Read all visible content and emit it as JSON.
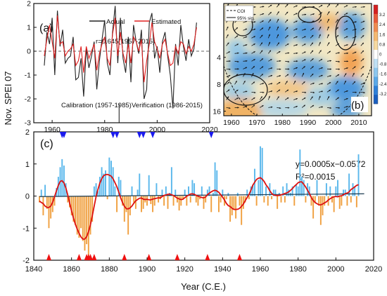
{
  "figure": {
    "shared_ylabel": "Nov. SPEI 07",
    "panel_c_xlabel": "Year (C.E.)"
  },
  "chart_data": [
    {
      "panel": "(a)",
      "type": "line",
      "xlim": [
        1953,
        2020
      ],
      "ylim": [
        -3,
        2
      ],
      "xticks": [
        1960,
        1980,
        2000,
        2020
      ],
      "yticks": [
        -3,
        -2,
        -1,
        0,
        1,
        2
      ],
      "legend": [
        "Actual",
        "Estimated"
      ],
      "legend_position": "top-right",
      "annotation": "r=0.645(1957-2015)",
      "period_labels": [
        "Calibration (1957-1985)",
        "Verification (1986-2015)"
      ],
      "divider_year": 1985.5,
      "x": [
        1957,
        1958,
        1959,
        1960,
        1961,
        1962,
        1963,
        1964,
        1965,
        1966,
        1967,
        1968,
        1969,
        1970,
        1971,
        1972,
        1973,
        1974,
        1975,
        1976,
        1977,
        1978,
        1979,
        1980,
        1981,
        1982,
        1983,
        1984,
        1985,
        1986,
        1987,
        1988,
        1989,
        1990,
        1991,
        1992,
        1993,
        1994,
        1995,
        1996,
        1997,
        1998,
        1999,
        2000,
        2001,
        2002,
        2003,
        2004,
        2005,
        2006,
        2007,
        2008,
        2009,
        2010,
        2011,
        2012,
        2013,
        2014,
        2015
      ],
      "series": [
        {
          "name": "Actual",
          "color": "#222222",
          "values": [
            -0.6,
            0.8,
            0.3,
            1.4,
            -1.0,
            1.7,
            0.2,
            0.9,
            -0.5,
            -0.3,
            -0.2,
            0.6,
            -1.2,
            -1.1,
            -0.3,
            -1.9,
            0.1,
            -0.7,
            -0.2,
            0.4,
            -1.6,
            -0.4,
            0.5,
            1.3,
            -0.5,
            -1.0,
            0.8,
            1.9,
            -0.5,
            1.4,
            -0.3,
            -0.9,
            0.6,
            -1.3,
            1.1,
            0.4,
            -0.1,
            0.9,
            -2.0,
            -1.6,
            1.2,
            1.6,
            -0.3,
            0.2,
            -0.9,
            0.4,
            0.8,
            -0.2,
            -1.0,
            -2.4,
            0.3,
            -0.6,
            1.1,
            0.2,
            -0.4,
            0.5,
            -0.2,
            0.1,
            1.2
          ]
        },
        {
          "name": "Estimated",
          "color": "#e02020",
          "values": [
            -0.2,
            0.5,
            1.1,
            0.4,
            -0.3,
            1.5,
            0.3,
            0.4,
            -0.2,
            0.0,
            0.1,
            0.3,
            -0.6,
            -0.4,
            0.2,
            -0.9,
            0.2,
            -0.3,
            0.0,
            0.3,
            -0.8,
            -0.1,
            0.3,
            0.6,
            -0.3,
            -0.6,
            0.7,
            1.4,
            -0.2,
            0.8,
            -0.1,
            -0.5,
            0.3,
            -0.5,
            0.6,
            0.4,
            0.0,
            0.5,
            -1.3,
            -0.4,
            0.3,
            1.2,
            0.4,
            0.1,
            -0.3,
            0.3,
            0.5,
            -0.1,
            -0.6,
            -0.5,
            0.2,
            -0.1,
            0.4,
            0.3,
            -0.1,
            0.2,
            0.0,
            0.3,
            1.0
          ]
        }
      ]
    },
    {
      "panel": "(b)",
      "type": "heatmap",
      "xlim": [
        1957,
        2015
      ],
      "ylim": [
        18,
        1
      ],
      "xticks": [
        1960,
        1970,
        1980,
        1990,
        2000,
        2010
      ],
      "yticks": [
        4,
        8,
        16
      ],
      "y_scale": "log2",
      "legend": [
        "COI",
        "95% sig."
      ],
      "legend_position": "top-left",
      "colorbar_ticks": [
        3.2,
        2.4,
        1.6,
        0.8,
        0,
        -0.8,
        -1.6,
        -2.4,
        -3.2
      ],
      "colors": {
        "positive": "#f0b060",
        "negative": "#3a8fe0",
        "neutral": "#f2e7c4"
      }
    },
    {
      "panel": "(c)",
      "type": "bar",
      "xlim": [
        1840,
        2020
      ],
      "ylim": [
        -2,
        2
      ],
      "xticks": [
        1840,
        1860,
        1880,
        1900,
        1920,
        1940,
        1960,
        1980,
        2000,
        2020
      ],
      "yticks": [
        -2,
        -1,
        0,
        1,
        2
      ],
      "equation": "y=0.0005x−0.0572",
      "r_squared": "R²=0.0015",
      "trend": {
        "slope": 0.0005,
        "intercept": -0.0572,
        "color": "#1a3a50"
      },
      "colors": {
        "positive": "#5bb8ec",
        "negative": "#f0a040",
        "smooth": "#dd1111",
        "wet_marker": "#1a1aee",
        "dry_marker": "#ee1111"
      },
      "wet_years": [
        1855,
        1856,
        1882,
        1884,
        1896,
        1898,
        1903,
        1934
      ],
      "dry_years": [
        1848,
        1864,
        1868,
        1869,
        1870,
        1872,
        1888,
        1901,
        1916,
        1932,
        1949
      ],
      "start_year": 1843,
      "values": [
        -0.2,
        0.2,
        -0.6,
        0.35,
        -0.4,
        -1.0,
        -0.7,
        -0.5,
        -0.3,
        0.25,
        0.6,
        0.9,
        1.15,
        0.95,
        0.4,
        -0.2,
        -0.35,
        -0.6,
        -0.8,
        -0.9,
        -1.2,
        -1.3,
        -1.0,
        -1.4,
        -1.7,
        -1.5,
        -1.95,
        -1.2,
        -0.8,
        0.3,
        0.4,
        0.15,
        0.6,
        0.9,
        0.7,
        0.8,
        -0.1,
        1.2,
        1.1,
        0.9,
        0.3,
        -0.5,
        0.6,
        0.5,
        -0.3,
        -0.8,
        -0.5,
        -1.2,
        -0.6,
        0.3,
        -0.2,
        -0.4,
        0.2,
        0.7,
        -0.5,
        -0.4,
        -0.2,
        -0.3,
        0.65,
        -0.25,
        -0.5,
        -0.3,
        0.4,
        -0.2,
        -0.1,
        0.2,
        -0.3,
        0.3,
        -0.4,
        0.1,
        0.9,
        -0.3,
        0.2,
        -0.2,
        -0.45,
        -0.3,
        -0.1,
        0.2,
        -0.3,
        0.3,
        -0.2,
        0.5,
        0.4,
        -0.2,
        -0.3,
        -0.1,
        0.3,
        -0.4,
        -0.2,
        0.2,
        0.3,
        -0.5,
        0.1,
        1.05,
        0.8,
        -0.5,
        -0.2,
        0.2,
        -0.3,
        -0.1,
        0.1,
        -0.8,
        -0.6,
        -0.4,
        -0.7,
        0.1,
        -0.3,
        -0.9,
        -0.4,
        -0.2,
        0.2,
        -0.1,
        0.3,
        0.35,
        0.85,
        -0.3,
        0.5,
        1.55,
        1.5,
        -0.2,
        0.3,
        -0.3,
        0.4,
        -0.1,
        0.2,
        0.2,
        -0.4,
        0.1,
        -0.2,
        0.3,
        -0.2,
        0.4,
        0.2,
        0.1,
        0.3,
        -0.3,
        0.35,
        0.3,
        1.45,
        0.6,
        0.5,
        -0.2,
        0.4,
        0.3,
        -0.3,
        -0.7,
        -0.2,
        0.5,
        -0.3,
        -0.9,
        -0.6,
        -0.3,
        0.4,
        -0.3,
        0.3,
        -0.2,
        -0.5,
        0.3,
        0.5,
        -0.4,
        -0.3,
        0.2,
        0.2,
        -0.3,
        0.7,
        -0.2,
        0.4,
        0.3,
        -0.35,
        1.3
      ]
    }
  ]
}
